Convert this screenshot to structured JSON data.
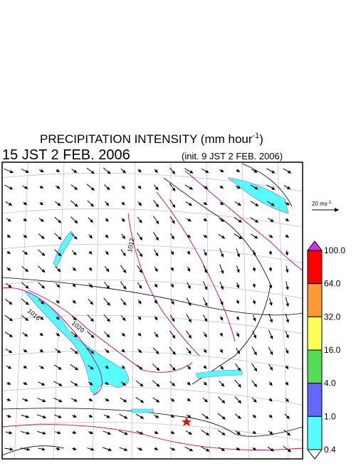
{
  "header": {
    "title": "PRECIPITATION INTENSITY (mm hour",
    "title_exp": "-1",
    "title_end": ")",
    "valid": "15 JST 2 FEB. 2006",
    "init": "(init. 9 JST 2 FEB. 2006)"
  },
  "reference_vector": {
    "label": "20 ms",
    "label_exp": "-1"
  },
  "contour_labels": [
    "1012",
    "1016",
    "1020"
  ],
  "colorbar": {
    "labels": [
      "100.0",
      "64.0",
      "32.0",
      "16.0",
      "4.0",
      "1.0",
      "0.4"
    ],
    "colors": [
      "#cc33ff",
      "#ff0000",
      "#ff9933",
      "#ffff55",
      "#55dd55",
      "#6666ff",
      "#55ffff",
      "#ffffff"
    ]
  }
}
